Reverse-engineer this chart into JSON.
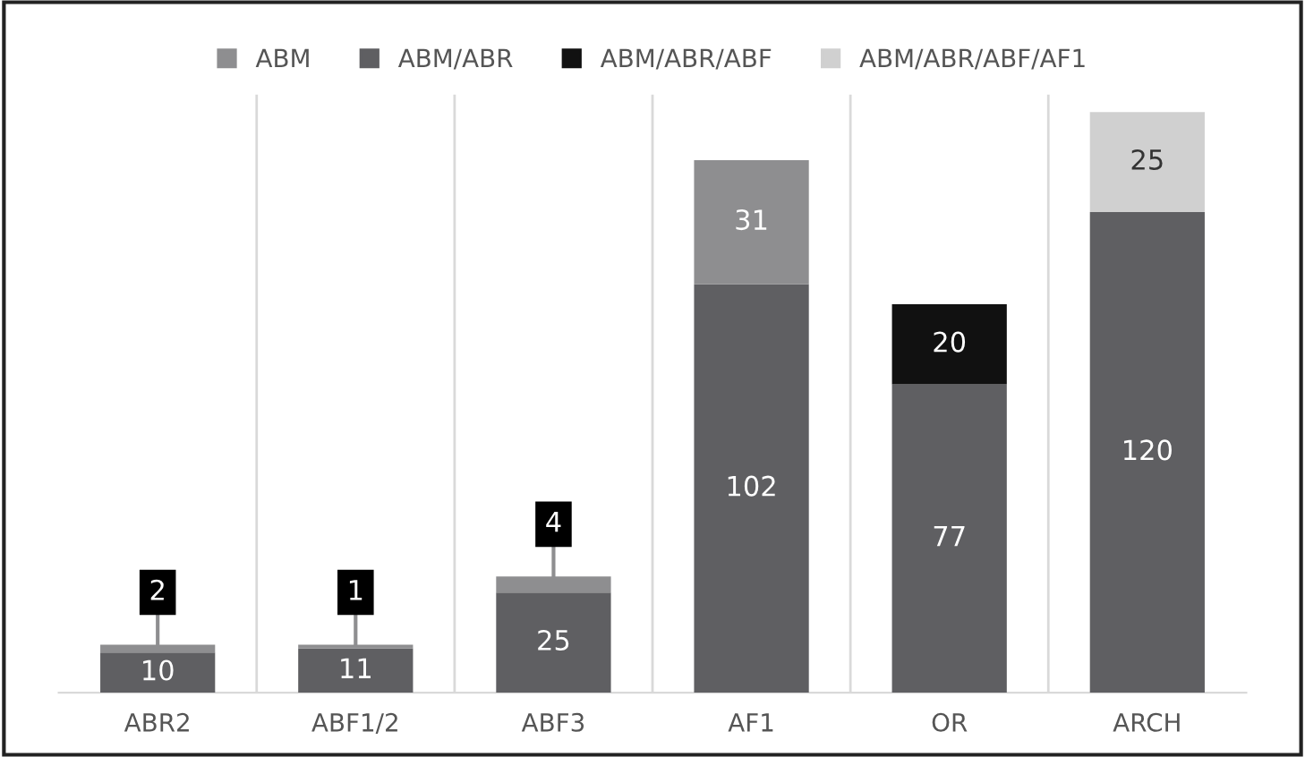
{
  "chart_data": {
    "type": "bar",
    "stacked": true,
    "data_labels": true,
    "legend": "top",
    "grid": "x",
    "categories": [
      "ABR2",
      "ABF1/2",
      "ABF3",
      "AF1",
      "OR",
      "ARCH"
    ],
    "series": [
      {
        "name": "ABM/ABR",
        "color": "#5f5f62",
        "values": [
          10,
          11,
          25,
          102,
          77,
          120
        ]
      },
      {
        "name": "ABM",
        "color": "#8e8e90",
        "values": [
          2,
          1,
          4,
          31,
          null,
          null
        ]
      },
      {
        "name": "ABM/ABR/ABF",
        "color": "#111111",
        "values": [
          null,
          null,
          null,
          null,
          20,
          null
        ]
      },
      {
        "name": "ABM/ABR/ABF/AF1",
        "color": "#d0d0d0",
        "values": [
          null,
          null,
          null,
          null,
          null,
          25
        ]
      }
    ]
  }
}
